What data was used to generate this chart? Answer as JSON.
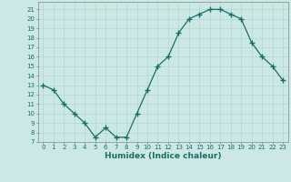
{
  "x": [
    0,
    1,
    2,
    3,
    4,
    5,
    6,
    7,
    8,
    9,
    10,
    11,
    12,
    13,
    14,
    15,
    16,
    17,
    18,
    19,
    20,
    21,
    22,
    23
  ],
  "y": [
    13,
    12.5,
    11,
    10,
    9,
    7.5,
    8.5,
    7.5,
    7.5,
    10,
    12.5,
    15,
    16,
    18.5,
    20,
    20.5,
    21,
    21,
    20.5,
    20,
    17.5,
    16,
    15,
    13.5
  ],
  "line_color": "#1a6e6a",
  "marker": "P",
  "bg_color": "#cce8e4",
  "grid_color": "#b0d8d4",
  "xlabel": "Humidex (Indice chaleur)",
  "xlim": [
    -0.5,
    23.5
  ],
  "ylim": [
    7,
    21.8
  ],
  "yticks": [
    7,
    8,
    9,
    10,
    11,
    12,
    13,
    14,
    15,
    16,
    17,
    18,
    19,
    20,
    21
  ],
  "xticks": [
    0,
    1,
    2,
    3,
    4,
    5,
    6,
    7,
    8,
    9,
    10,
    11,
    12,
    13,
    14,
    15,
    16,
    17,
    18,
    19,
    20,
    21,
    22,
    23
  ],
  "tick_color": "#1a6e6a",
  "axis_color": "#888888",
  "label_fontsize": 6.5,
  "tick_fontsize": 5.0,
  "linewidth": 0.9,
  "markersize": 2.5,
  "markeredgewidth": 1.0
}
